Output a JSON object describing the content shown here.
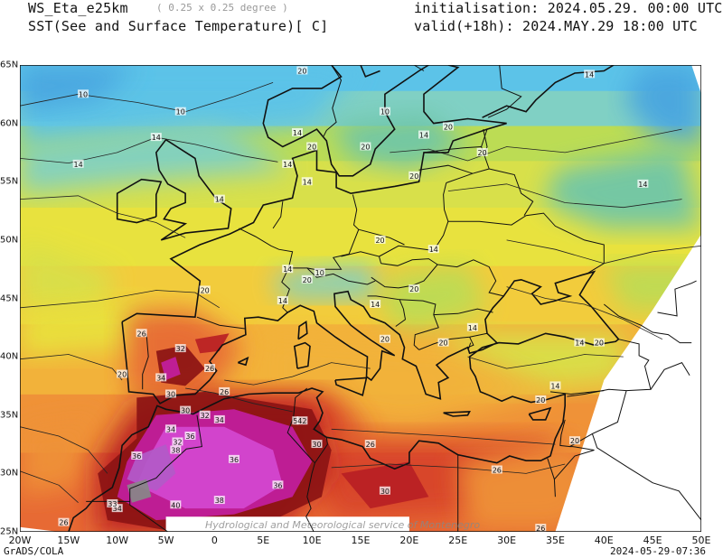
{
  "header": {
    "model": "WS_Eta_e25km",
    "resolution": "( 0.25 x 0.25 degree )",
    "field": "SST(See and Surface Temperature)[ C]",
    "initialisation": "initialisation: 2024.05.29. 00:00 UTC",
    "valid": "valid(+18h): 2024.MAY.29 18:00 UTC"
  },
  "footer": {
    "software": "GrADS/COLA",
    "timestamp": "2024-05-29-07:36",
    "watermark": "Hydrological and Meteorological service of Montenegro"
  },
  "axes": {
    "x_ticks": [
      "20W",
      "15W",
      "10W",
      "5W",
      "0",
      "5E",
      "10E",
      "15E",
      "20E",
      "25E",
      "30E",
      "35E",
      "40E",
      "45E",
      "50E"
    ],
    "x_values": [
      -20,
      -15,
      -10,
      -5,
      0,
      5,
      10,
      15,
      20,
      25,
      30,
      35,
      40,
      45,
      50
    ],
    "y_ticks": [
      "25N",
      "30N",
      "35N",
      "40N",
      "45N",
      "50N",
      "55N",
      "60N",
      "65N"
    ],
    "y_values": [
      25,
      30,
      35,
      40,
      45,
      50,
      55,
      60,
      65
    ],
    "lon_range": [
      -20,
      50
    ],
    "lat_range": [
      25,
      65
    ]
  },
  "colors": {
    "t8": "#4aa6e0",
    "t10": "#5cc3e8",
    "t12": "#80d0c4",
    "t14": "#bcdc54",
    "t16": "#d8e04a",
    "t18": "#e8e23e",
    "t20": "#f2cc3c",
    "t22": "#f2b23a",
    "t24": "#ef9238",
    "t26": "#e76a34",
    "t28": "#d8442c",
    "t30": "#b81f24",
    "t32": "#8c1414",
    "t34": "#c21ea0",
    "t36": "#d448d0",
    "t38": "#b25ac8",
    "t40": "#888888",
    "lowland": "#6fc6a8",
    "sea_cold": "#4cb2d2"
  },
  "contour_labels": [
    {
      "text": "10",
      "lon": -13.5,
      "lat": 62.5
    },
    {
      "text": "10",
      "lon": -3.5,
      "lat": 61.0
    },
    {
      "text": "20",
      "lon": 9,
      "lat": 64.5
    },
    {
      "text": "14",
      "lon": -14,
      "lat": 56.5
    },
    {
      "text": "14",
      "lon": -6,
      "lat": 58.8
    },
    {
      "text": "14",
      "lon": 8.5,
      "lat": 59.2
    },
    {
      "text": "20",
      "lon": 10,
      "lat": 58.0
    },
    {
      "text": "14",
      "lon": 7.5,
      "lat": 56.5
    },
    {
      "text": "14",
      "lon": 0.5,
      "lat": 53.5
    },
    {
      "text": "14",
      "lon": 9.5,
      "lat": 55.0
    },
    {
      "text": "20",
      "lon": 15.5,
      "lat": 58.0
    },
    {
      "text": "10",
      "lon": 17.5,
      "lat": 61.0
    },
    {
      "text": "14",
      "lon": 21.5,
      "lat": 59.0
    },
    {
      "text": "20",
      "lon": 24,
      "lat": 59.7
    },
    {
      "text": "20",
      "lon": 27.5,
      "lat": 57.5
    },
    {
      "text": "20",
      "lon": 20.5,
      "lat": 55.5
    },
    {
      "text": "14",
      "lon": 38.5,
      "lat": 64.2
    },
    {
      "text": "14",
      "lon": 44,
      "lat": 54.8
    },
    {
      "text": "20",
      "lon": 17,
      "lat": 50.0
    },
    {
      "text": "14",
      "lon": 22.5,
      "lat": 49.2
    },
    {
      "text": "14",
      "lon": 7.5,
      "lat": 47.5
    },
    {
      "text": "20",
      "lon": 9.5,
      "lat": 46.6
    },
    {
      "text": "10",
      "lon": 10.8,
      "lat": 47.2
    },
    {
      "text": "20",
      "lon": -1,
      "lat": 45.7
    },
    {
      "text": "14",
      "lon": 7,
      "lat": 44.8
    },
    {
      "text": "20",
      "lon": 20.5,
      "lat": 45.8
    },
    {
      "text": "14",
      "lon": 16.5,
      "lat": 44.5
    },
    {
      "text": "20",
      "lon": 17.5,
      "lat": 41.5
    },
    {
      "text": "20",
      "lon": 23.5,
      "lat": 41.2
    },
    {
      "text": "14",
      "lon": 26.5,
      "lat": 42.5
    },
    {
      "text": "14",
      "lon": 37.5,
      "lat": 41.2
    },
    {
      "text": "20",
      "lon": 39.5,
      "lat": 41.2
    },
    {
      "text": "20",
      "lon": -9.5,
      "lat": 38.5
    },
    {
      "text": "26",
      "lon": -7.5,
      "lat": 42.0
    },
    {
      "text": "32",
      "lon": -3.5,
      "lat": 40.7
    },
    {
      "text": "26",
      "lon": -0.5,
      "lat": 39.0
    },
    {
      "text": "34",
      "lon": -5.5,
      "lat": 38.2
    },
    {
      "text": "30",
      "lon": -4.5,
      "lat": 36.8
    },
    {
      "text": "26",
      "lon": 1,
      "lat": 37.0
    },
    {
      "text": "14",
      "lon": 35,
      "lat": 37.5
    },
    {
      "text": "20",
      "lon": 33.5,
      "lat": 36.3
    },
    {
      "text": "30",
      "lon": -3,
      "lat": 35.4
    },
    {
      "text": "32",
      "lon": -1,
      "lat": 35.0
    },
    {
      "text": "34",
      "lon": 0.5,
      "lat": 34.6
    },
    {
      "text": "5",
      "lon": 8.3,
      "lat": 34.5
    },
    {
      "text": "42",
      "lon": 9,
      "lat": 34.5
    },
    {
      "text": "34",
      "lon": -4.5,
      "lat": 33.8
    },
    {
      "text": "36",
      "lon": -2.5,
      "lat": 33.2
    },
    {
      "text": "38",
      "lon": -4,
      "lat": 32.0
    },
    {
      "text": "32",
      "lon": -3.8,
      "lat": 32.7
    },
    {
      "text": "30",
      "lon": 10.5,
      "lat": 32.5
    },
    {
      "text": "26",
      "lon": 16,
      "lat": 32.5
    },
    {
      "text": "36",
      "lon": -8,
      "lat": 31.5
    },
    {
      "text": "36",
      "lon": 2,
      "lat": 31.2
    },
    {
      "text": "36",
      "lon": 6.5,
      "lat": 29.0
    },
    {
      "text": "38",
      "lon": 0.5,
      "lat": 27.7
    },
    {
      "text": "40",
      "lon": -4,
      "lat": 27.3
    },
    {
      "text": "26",
      "lon": 29,
      "lat": 30.3
    },
    {
      "text": "30",
      "lon": 17.5,
      "lat": 28.5
    },
    {
      "text": "20",
      "lon": 37,
      "lat": 32.8
    },
    {
      "text": "26",
      "lon": -15.5,
      "lat": 25.8
    },
    {
      "text": "34",
      "lon": -10,
      "lat": 27.0
    },
    {
      "text": "33",
      "lon": -10.5,
      "lat": 27.4
    },
    {
      "text": "26",
      "lon": 33.5,
      "lat": 25.3
    }
  ]
}
